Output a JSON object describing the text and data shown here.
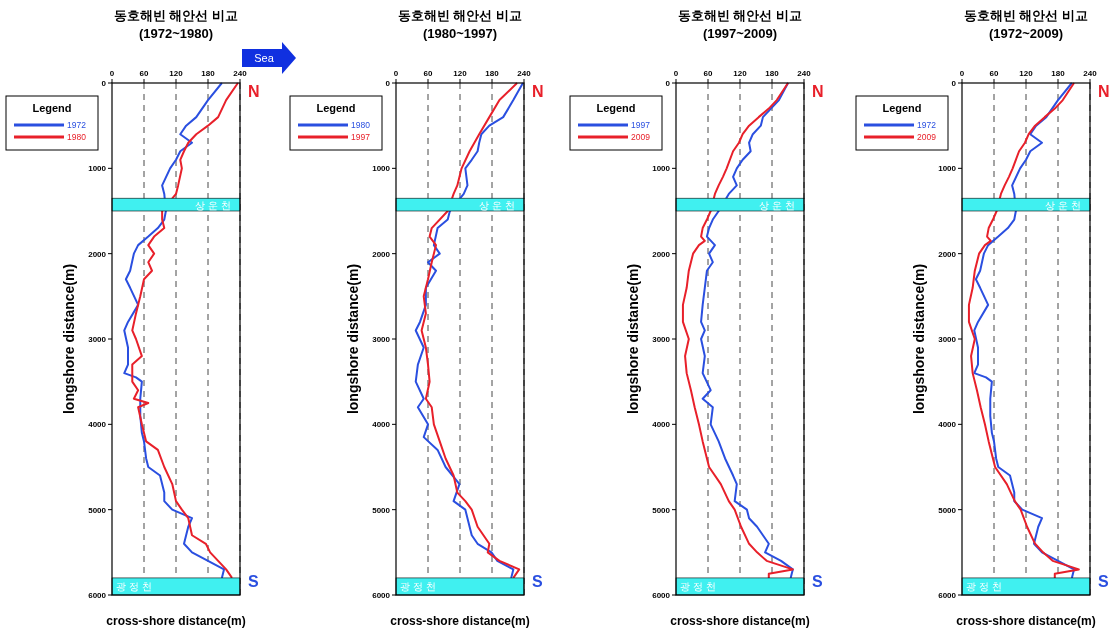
{
  "chart_data": [
    {
      "type": "line",
      "title": "동호해빈 해안선 비교",
      "subtitle": "(1972~1980)",
      "xlabel": "cross-shore distance(m)",
      "ylabel": "longshore distance(m)",
      "legend_title": "Legend",
      "legend": "left",
      "grid": "x",
      "line_style": "solid",
      "xlim": [
        0,
        240
      ],
      "xticks": [
        0,
        60,
        120,
        180,
        240
      ],
      "ylim": [
        6000,
        0
      ],
      "yticks": [
        0,
        1000,
        2000,
        3000,
        4000,
        5000,
        6000
      ],
      "annotations": [
        "N",
        "S",
        "Sea"
      ],
      "bands": [
        {
          "axis": "y",
          "from": 1350,
          "to": 1500,
          "label": "상운천",
          "color": "#40f0f0"
        },
        {
          "axis": "y",
          "from": 5800,
          "to": 6000,
          "label": "광정천",
          "color": "#40f0f0"
        }
      ],
      "series": [
        {
          "name": "1972",
          "color": "#2a4fe0",
          "x": [
            206,
            180,
            158,
            139,
            128,
            150,
            128,
            120,
            109,
            94,
            98,
            101,
            98,
            86,
            68,
            49,
            41,
            34,
            26,
            34,
            49,
            30,
            23,
            30,
            30,
            23,
            45,
            56,
            53,
            53,
            56,
            60,
            64,
            68,
            90,
            98,
            98,
            113,
            150,
            143,
            139,
            135,
            150,
            180,
            210,
            206
          ],
          "values": [
            0,
            200,
            400,
            500,
            600,
            700,
            800,
            900,
            1000,
            1200,
            1300,
            1500,
            1600,
            1700,
            1800,
            1900,
            2000,
            2200,
            2300,
            2400,
            2600,
            2800,
            2900,
            3100,
            3300,
            3400,
            3450,
            3500,
            3700,
            3900,
            4100,
            4200,
            4400,
            4500,
            4600,
            4800,
            4900,
            5000,
            5100,
            5200,
            5300,
            5400,
            5500,
            5600,
            5700,
            5800
          ]
        },
        {
          "name": "1980",
          "color": "#e8202a",
          "x": [
            236,
            214,
            199,
            180,
            158,
            143,
            135,
            128,
            131,
            124,
            120,
            94,
            94,
            98,
            79,
            68,
            79,
            68,
            75,
            60,
            53,
            45,
            38,
            45,
            56,
            38,
            38,
            49,
            41,
            68,
            49,
            56,
            64,
            86,
            98,
            113,
            120,
            131,
            143,
            150,
            176,
            184,
            214,
            225
          ],
          "values": [
            0,
            200,
            400,
            500,
            600,
            700,
            800,
            900,
            1000,
            1200,
            1300,
            1500,
            1600,
            1700,
            1800,
            1900,
            2000,
            2100,
            2200,
            2300,
            2500,
            2700,
            2900,
            3000,
            3200,
            3300,
            3500,
            3600,
            3700,
            3750,
            3800,
            4000,
            4200,
            4300,
            4500,
            4700,
            4900,
            5000,
            5100,
            5300,
            5400,
            5500,
            5700,
            5800
          ]
        }
      ]
    },
    {
      "type": "line",
      "title": "동호해빈 해안선 비교",
      "subtitle": "(1980~1997)",
      "xlabel": "cross-shore distance(m)",
      "ylabel": "longshore distance(m)",
      "legend_title": "Legend",
      "legend": "left",
      "grid": "x",
      "line_style": "solid",
      "xlim": [
        0,
        240
      ],
      "xticks": [
        0,
        60,
        120,
        180,
        240
      ],
      "ylim": [
        6000,
        0
      ],
      "yticks": [
        0,
        1000,
        2000,
        3000,
        4000,
        5000,
        6000
      ],
      "annotations": [
        "N",
        "S"
      ],
      "bands": [
        {
          "axis": "y",
          "from": 1350,
          "to": 1500,
          "label": "상운천",
          "color": "#40f0f0"
        },
        {
          "axis": "y",
          "from": 5800,
          "to": 6000,
          "label": "광정천",
          "color": "#40f0f0"
        }
      ],
      "series": [
        {
          "name": "1980",
          "color": "#2a4fe0",
          "x": [
            238,
            220,
            201,
            175,
            160,
            156,
            153,
            142,
            130,
            134,
            127,
            101,
            97,
            78,
            71,
            82,
            60,
            75,
            56,
            56,
            45,
            37,
            52,
            41,
            37,
            52,
            41,
            60,
            52,
            78,
            93,
            119,
            108,
            130,
            138,
            142,
            153,
            179,
            190,
            220,
            216
          ],
          "values": [
            0,
            200,
            400,
            500,
            600,
            700,
            800,
            900,
            1000,
            1200,
            1300,
            1500,
            1600,
            1700,
            1900,
            2000,
            2100,
            2200,
            2400,
            2600,
            2800,
            2900,
            3100,
            3300,
            3500,
            3700,
            3800,
            4000,
            4150,
            4300,
            4500,
            4700,
            4900,
            5000,
            5200,
            5300,
            5400,
            5500,
            5600,
            5700,
            5800
          ]
        },
        {
          "name": "1997",
          "color": "#e8202a",
          "x": [
            227,
            194,
            175,
            156,
            138,
            123,
            115,
            108,
            97,
            67,
            63,
            75,
            67,
            60,
            52,
            56,
            48,
            56,
            60,
            63,
            56,
            67,
            71,
            82,
            93,
            108,
            115,
            130,
            142,
            153,
            175,
            172,
            194,
            231,
            220
          ],
          "values": [
            0,
            200,
            400,
            600,
            800,
            1000,
            1200,
            1300,
            1500,
            1700,
            1800,
            1900,
            2100,
            2300,
            2500,
            2700,
            2900,
            3100,
            3300,
            3500,
            3700,
            3800,
            4000,
            4200,
            4400,
            4600,
            4800,
            4900,
            5000,
            5200,
            5400,
            5500,
            5600,
            5700,
            5800
          ]
        }
      ]
    },
    {
      "type": "line",
      "title": "동호해빈 해안선 비교",
      "subtitle": "(1997~2009)",
      "xlabel": "cross-shore distance(m)",
      "ylabel": "longshore distance(m)",
      "legend_title": "Legend",
      "legend": "left",
      "grid": "x",
      "line_style": "solid",
      "xlim": [
        0,
        240
      ],
      "xticks": [
        0,
        60,
        120,
        180,
        240
      ],
      "ylim": [
        6000,
        0
      ],
      "yticks": [
        0,
        1000,
        2000,
        3000,
        4000,
        5000,
        6000
      ],
      "annotations": [
        "N",
        "S"
      ],
      "bands": [
        {
          "axis": "y",
          "from": 1350,
          "to": 1500,
          "label": "상운천",
          "color": "#40f0f0"
        },
        {
          "axis": "y",
          "from": 5800,
          "to": 6000,
          "label": "광정천",
          "color": "#40f0f0"
        }
      ],
      "series": [
        {
          "name": "1997",
          "color": "#2a4fe0",
          "x": [
            210,
            193,
            178,
            163,
            159,
            144,
            137,
            140,
            125,
            114,
            107,
            114,
            99,
            80,
            69,
            62,
            58,
            73,
            62,
            69,
            58,
            54,
            50,
            47,
            54,
            47,
            54,
            50,
            65,
            50,
            69,
            65,
            80,
            92,
            107,
            114,
            110,
            133,
            137,
            152,
            163,
            174,
            167,
            197,
            219,
            215
          ],
          "values": [
            0,
            200,
            300,
            400,
            500,
            600,
            700,
            800,
            900,
            1000,
            1100,
            1200,
            1300,
            1500,
            1600,
            1700,
            1800,
            1900,
            2000,
            2100,
            2200,
            2400,
            2600,
            2800,
            2900,
            3000,
            3200,
            3400,
            3600,
            3700,
            3800,
            4000,
            4200,
            4400,
            4600,
            4700,
            4900,
            5000,
            5100,
            5200,
            5300,
            5400,
            5500,
            5600,
            5700,
            5800
          ]
        },
        {
          "name": "2009",
          "color": "#e8202a",
          "x": [
            210,
            189,
            174,
            155,
            137,
            125,
            118,
            107,
            95,
            88,
            80,
            73,
            65,
            58,
            50,
            47,
            54,
            43,
            32,
            24,
            20,
            13,
            13,
            24,
            17,
            20,
            28,
            35,
            43,
            50,
            58,
            62,
            84,
            99,
            110,
            122,
            137,
            152,
            170,
            219,
            174,
            174
          ],
          "values": [
            0,
            200,
            300,
            400,
            500,
            600,
            700,
            800,
            1000,
            1100,
            1200,
            1300,
            1500,
            1600,
            1700,
            1800,
            1850,
            1900,
            2000,
            2200,
            2400,
            2600,
            2800,
            3000,
            3200,
            3400,
            3600,
            3800,
            4000,
            4200,
            4400,
            4500,
            4700,
            4900,
            5000,
            5200,
            5400,
            5500,
            5600,
            5700,
            5750,
            5800
          ]
        }
      ]
    },
    {
      "type": "line",
      "title": "동호해빈 해안선 비교",
      "subtitle": "(1972~2009)",
      "xlabel": "cross-shore distance(m)",
      "ylabel": "longshore distance(m)",
      "legend_title": "Legend",
      "legend": "left",
      "grid": "x",
      "line_style": "solid",
      "xlim": [
        0,
        240
      ],
      "xticks": [
        0,
        60,
        120,
        180,
        240
      ],
      "ylim": [
        6000,
        0
      ],
      "yticks": [
        0,
        1000,
        2000,
        3000,
        4000,
        5000,
        6000
      ],
      "annotations": [
        "N",
        "S"
      ],
      "bands": [
        {
          "axis": "y",
          "from": 1350,
          "to": 1500,
          "label": "상운천",
          "color": "#40f0f0"
        },
        {
          "axis": "y",
          "from": 5800,
          "to": 6000,
          "label": "광정천",
          "color": "#40f0f0"
        }
      ],
      "series": [
        {
          "name": "1972",
          "color": "#2a4fe0",
          "x": [
            206,
            180,
            158,
            139,
            128,
            150,
            128,
            120,
            109,
            94,
            98,
            101,
            98,
            86,
            68,
            49,
            41,
            34,
            26,
            34,
            49,
            30,
            23,
            30,
            30,
            23,
            45,
            56,
            53,
            53,
            56,
            60,
            64,
            68,
            90,
            98,
            98,
            113,
            150,
            143,
            139,
            135,
            150,
            180,
            210,
            206
          ],
          "values": [
            0,
            200,
            400,
            500,
            600,
            700,
            800,
            900,
            1000,
            1200,
            1300,
            1500,
            1600,
            1700,
            1800,
            1900,
            2000,
            2200,
            2300,
            2400,
            2600,
            2800,
            2900,
            3100,
            3300,
            3400,
            3450,
            3500,
            3700,
            3900,
            4100,
            4200,
            4400,
            4500,
            4600,
            4800,
            4900,
            5000,
            5100,
            5200,
            5300,
            5400,
            5500,
            5600,
            5700,
            5800
          ]
        },
        {
          "name": "2009",
          "color": "#e8202a",
          "x": [
            210,
            189,
            174,
            155,
            137,
            125,
            118,
            107,
            95,
            88,
            80,
            73,
            65,
            58,
            50,
            47,
            54,
            43,
            32,
            24,
            20,
            13,
            13,
            24,
            17,
            20,
            28,
            35,
            43,
            50,
            58,
            62,
            84,
            99,
            110,
            122,
            137,
            152,
            170,
            219,
            174,
            174
          ],
          "values": [
            0,
            200,
            300,
            400,
            500,
            600,
            700,
            800,
            1000,
            1100,
            1200,
            1300,
            1500,
            1600,
            1700,
            1800,
            1850,
            1900,
            2000,
            2200,
            2400,
            2600,
            2800,
            3000,
            3200,
            3400,
            3600,
            3800,
            4000,
            4200,
            4400,
            4500,
            4700,
            4900,
            5000,
            5200,
            5400,
            5500,
            5600,
            5700,
            5750,
            5800
          ]
        }
      ]
    }
  ]
}
